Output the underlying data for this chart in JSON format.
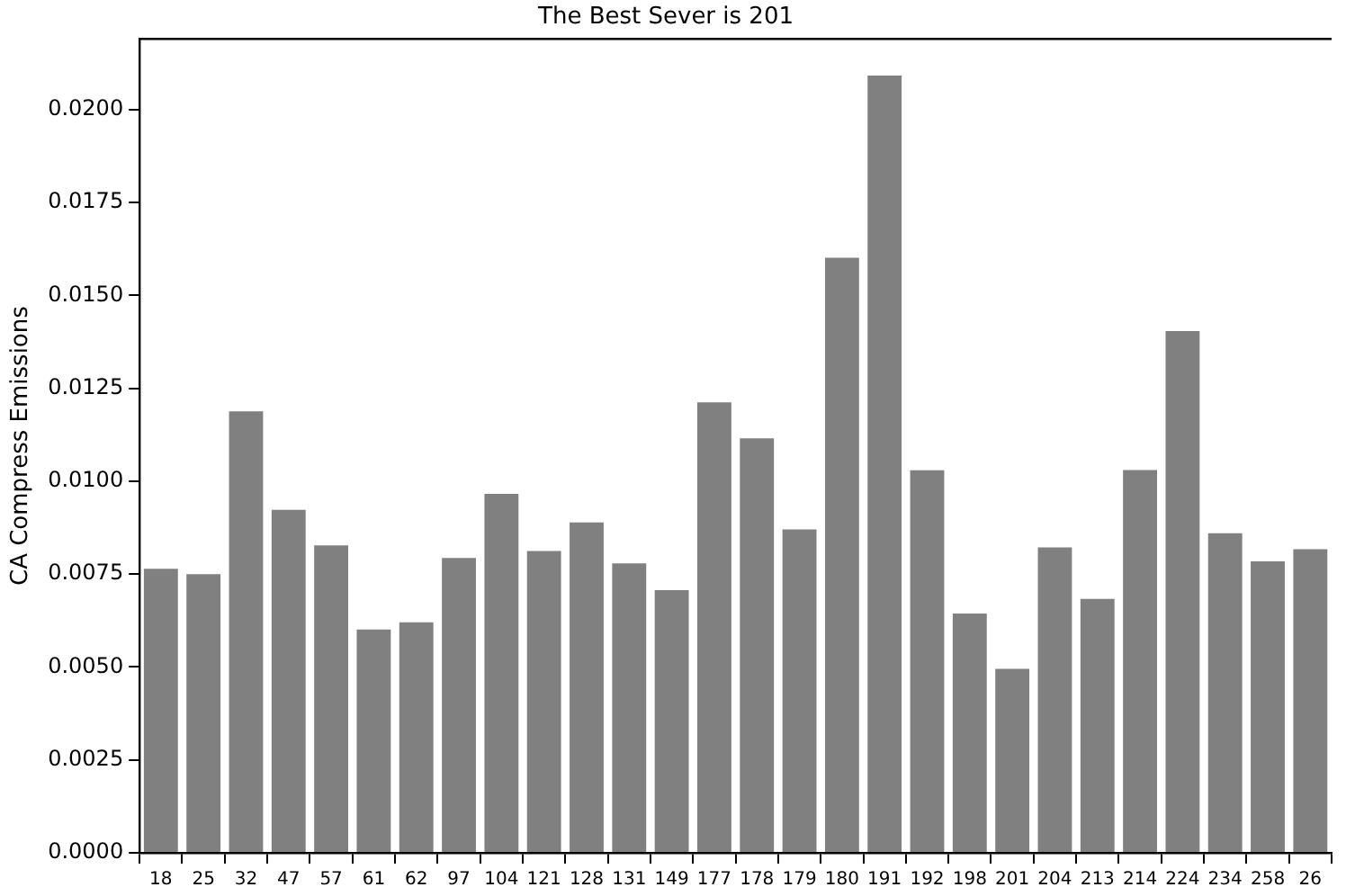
{
  "chart_data": {
    "type": "bar",
    "title": "The Best Sever is 201",
    "ylabel": "CA Compress Emissions",
    "categories": [
      "18",
      "25",
      "32",
      "47",
      "57",
      "61",
      "62",
      "97",
      "104",
      "121",
      "128",
      "131",
      "149",
      "177",
      "178",
      "179",
      "180",
      "191",
      "192",
      "198",
      "201",
      "204",
      "213",
      "214",
      "224",
      "234",
      "258",
      "26"
    ],
    "values": [
      0.00764,
      0.0075,
      0.01188,
      0.00923,
      0.00827,
      0.00601,
      0.0062,
      0.00793,
      0.00966,
      0.00812,
      0.00889,
      0.00779,
      0.00707,
      0.01212,
      0.01115,
      0.0087,
      0.01601,
      0.02091,
      0.01029,
      0.00644,
      0.00495,
      0.00822,
      0.00683,
      0.0103,
      0.01404,
      0.0086,
      0.00784,
      0.00817
    ],
    "color": "#808080",
    "ylim": [
      0,
      0.0219
    ],
    "yticks": [
      {
        "value": 0,
        "label": "0.0000"
      },
      {
        "value": 0.0025,
        "label": "0.0025"
      },
      {
        "value": 0.005,
        "label": "0.0050"
      },
      {
        "value": 0.0075,
        "label": "0.0075"
      },
      {
        "value": 0.01,
        "label": "0.0100"
      },
      {
        "value": 0.0125,
        "label": "0.0125"
      },
      {
        "value": 0.015,
        "label": "0.0150"
      },
      {
        "value": 0.0175,
        "label": "0.0175"
      },
      {
        "value": 0.02,
        "label": "0.0200"
      }
    ],
    "grid": false,
    "legend": false
  }
}
